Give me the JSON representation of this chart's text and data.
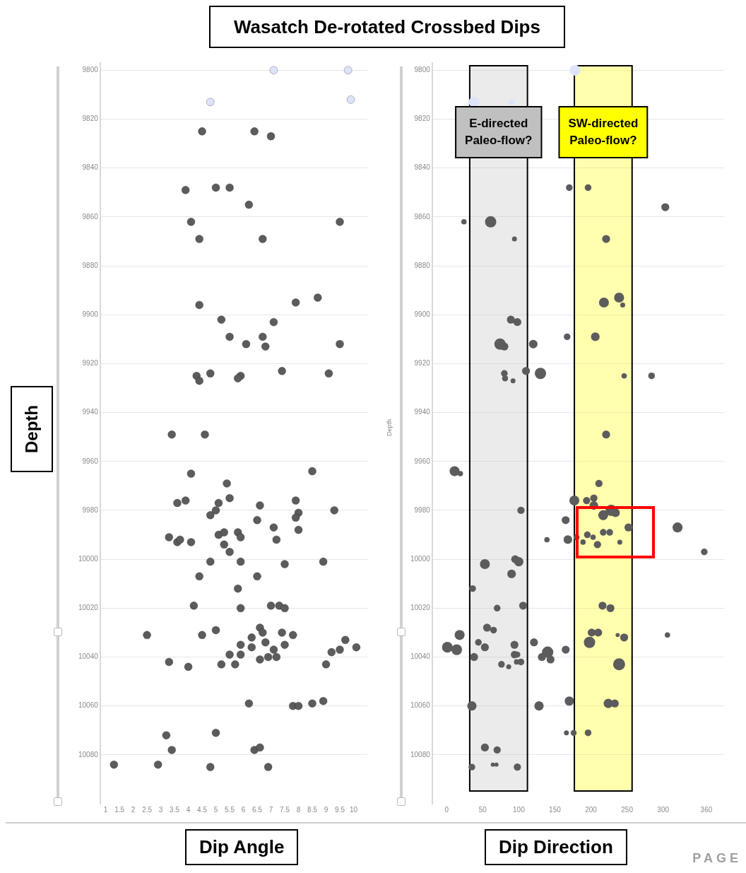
{
  "chart_data": [
    {
      "type": "scatter",
      "title": "Wasatch De-rotated Crossbed Dips",
      "xlabel": "Dip Angle",
      "ylabel": "Depth",
      "marker": "circle",
      "grid": "y",
      "xlim": [
        0.8,
        10.5
      ],
      "ylim": [
        10100,
        9797
      ],
      "xticks": [
        1,
        1.5,
        2,
        2.5,
        3,
        3.5,
        4,
        4.5,
        5,
        5.5,
        6,
        6.5,
        7,
        7.5,
        8,
        8.5,
        9,
        9.5,
        10
      ],
      "yticks": [
        9800,
        9820,
        9840,
        9860,
        9880,
        9900,
        9920,
        9940,
        9960,
        9980,
        10000,
        10020,
        10040,
        10060,
        10080
      ],
      "series": [
        {
          "color": "#5c5c5c",
          "x": [
            4.5,
            6.4,
            7.0,
            3.9,
            5.0,
            5.5,
            6.2,
            4.1,
            9.5,
            4.4,
            6.7,
            4.4,
            7.9,
            8.7,
            5.2,
            7.1,
            5.5,
            6.7,
            6.1,
            6.8,
            9.5,
            4.3,
            4.4,
            4.8,
            5.9,
            5.8,
            7.4,
            9.1,
            3.4,
            4.6,
            4.1,
            8.5,
            5.4,
            3.6,
            3.9,
            5.1,
            5.5,
            6.6,
            7.9,
            5.0,
            4.8,
            6.5,
            8.0,
            7.9,
            9.3,
            7.1,
            8.0,
            3.3,
            3.6,
            3.7,
            4.1,
            5.1,
            5.3,
            5.8,
            5.9,
            7.2,
            5.3,
            5.5,
            4.8,
            5.9,
            7.5,
            8.9,
            4.4,
            6.5,
            5.8,
            4.2,
            5.9,
            7.0,
            7.3,
            7.5,
            2.5,
            4.5,
            5.0,
            6.3,
            6.6,
            6.7,
            7.4,
            7.8,
            5.9,
            6.3,
            6.8,
            7.5,
            9.7,
            9.2,
            9.5,
            10.1,
            5.5,
            5.9,
            6.6,
            6.9,
            7.1,
            7.2,
            3.3,
            4.0,
            5.2,
            5.7,
            9.0,
            6.2,
            7.8,
            8.0,
            8.5,
            8.9,
            3.2,
            5.0,
            3.4,
            6.4,
            6.6,
            1.3,
            2.9,
            4.8,
            6.9
          ],
          "values": [
            9825,
            9825,
            9827,
            9849,
            9848,
            9848,
            9855,
            9862,
            9862,
            9869,
            9869,
            9896,
            9895,
            9893,
            9902,
            9903,
            9909,
            9909,
            9912,
            9913,
            9912,
            9925,
            9927,
            9924,
            9925,
            9926,
            9923,
            9924,
            9949,
            9949,
            9965,
            9964,
            9969,
            9977,
            9976,
            9977,
            9975,
            9978,
            9976,
            9980,
            9982,
            9984,
            9981,
            9983,
            9980,
            9987,
            9988,
            9991,
            9993,
            9992,
            9993,
            9990,
            9989,
            9989,
            9991,
            9992,
            9994,
            9997,
            10001,
            10001,
            10002,
            10001,
            10007,
            10007,
            10012,
            10019,
            10020,
            10019,
            10019,
            10020,
            10031,
            10031,
            10029,
            10032,
            10028,
            10030,
            10030,
            10031,
            10035,
            10036,
            10034,
            10035,
            10033,
            10038,
            10037,
            10036,
            10039,
            10039,
            10041,
            10040,
            10037,
            10040,
            10042,
            10044,
            10043,
            10043,
            10043,
            10059,
            10060,
            10060,
            10059,
            10058,
            10072,
            10071,
            10078,
            10078,
            10077,
            10084,
            10084,
            10085,
            10085
          ]
        },
        {
          "color": "#dde3f8",
          "x": [
            7.1,
            9.8,
            4.8,
            9.9
          ],
          "values": [
            9800,
            9800,
            9813,
            9812
          ]
        }
      ]
    },
    {
      "type": "bubble",
      "xlabel": "Dip Direction",
      "ylabel": "Depth",
      "grid": "y",
      "annotations": [
        "PAGE"
      ],
      "xlim": [
        -20,
        385
      ],
      "ylim": [
        10100,
        9797
      ],
      "xticks": [
        0,
        50,
        100,
        150,
        200,
        250,
        300,
        360
      ],
      "yticks": [
        9800,
        9820,
        9840,
        9860,
        9880,
        9900,
        9920,
        9940,
        9960,
        9980,
        10000,
        10020,
        10040,
        10060,
        10080
      ],
      "bands": [
        {
          "axis": "x",
          "from": 32,
          "to": 112,
          "label": "E-directed Paleo-flow?",
          "color": "#c0c0c0"
        },
        {
          "axis": "x",
          "from": 177,
          "to": 257,
          "label": "SW-directed Paleo-flow?",
          "color": "#ffff00"
        }
      ],
      "series": [
        {
          "color": "#5c5c5c",
          "x": [
            170,
            196,
            303,
            24,
            61,
            94,
            221,
            218,
            239,
            244,
            89,
            98,
            167,
            206,
            74,
            80,
            120,
            80,
            81,
            92,
            110,
            130,
            246,
            284,
            221,
            11,
            19,
            211,
            177,
            194,
            204,
            204,
            228,
            234,
            103,
            217,
            165,
            252,
            320,
            139,
            168,
            180,
            189,
            195,
            203,
            209,
            217,
            226,
            240,
            357,
            53,
            95,
            100,
            90,
            36,
            70,
            106,
            216,
            227,
            18,
            56,
            65,
            201,
            210,
            237,
            246,
            306,
            198,
            1,
            14,
            44,
            53,
            94,
            121,
            140,
            132,
            144,
            165,
            38,
            94,
            98,
            76,
            86,
            97,
            103,
            239,
            35,
            128,
            170,
            224,
            233,
            166,
            176,
            196,
            53,
            70,
            35,
            64,
            69,
            98
          ],
          "values": [
            9848,
            9848,
            9856,
            9862,
            9862,
            9869,
            9869,
            9895,
            9893,
            9896,
            9902,
            9903,
            9909,
            9909,
            9912,
            9913,
            9912,
            9924,
            9926,
            9927,
            9923,
            9924,
            9925,
            9925,
            9949,
            9964,
            9965,
            9969,
            9976,
            9976,
            9975,
            9978,
            9980,
            9981,
            9980,
            9982,
            9984,
            9987,
            9987,
            9992,
            9992,
            9991,
            9993,
            9990,
            9991,
            9994,
            9989,
            9989,
            9993,
            9997,
            10002,
            10000,
            10001,
            10006,
            10012,
            10020,
            10019,
            10019,
            10020,
            10031,
            10028,
            10029,
            10030,
            10030,
            10031,
            10032,
            10031,
            10034,
            10036,
            10037,
            10034,
            10036,
            10035,
            10034,
            10038,
            10040,
            10041,
            10037,
            10040,
            10039,
            10039,
            10043,
            10044,
            10042,
            10042,
            10043,
            10060,
            10060,
            10058,
            10059,
            10059,
            10071,
            10071,
            10071,
            10077,
            10078,
            10085,
            10084,
            10084,
            10085
          ],
          "sizes": [
            0.31,
            0.31,
            0.44,
            0.2,
            0.89,
            0.17,
            0.44,
            0.69,
            0.69,
            0.17,
            0.44,
            0.44,
            0.31,
            0.52,
            0.89,
            0.44,
            0.52,
            0.31,
            0.25,
            0.17,
            0.44,
            0.89,
            0.2,
            0.31,
            0.44,
            0.69,
            0.2,
            0.37,
            0.69,
            0.37,
            0.37,
            0.52,
            0.89,
            0.52,
            0.37,
            0.69,
            0.44,
            0.44,
            0.69,
            0.2,
            0.52,
            0.25,
            0.2,
            0.31,
            0.2,
            0.37,
            0.31,
            0.31,
            0.17,
            0.31,
            0.69,
            0.44,
            0.6,
            0.52,
            0.31,
            0.31,
            0.44,
            0.44,
            0.44,
            0.69,
            0.44,
            0.31,
            0.44,
            0.44,
            0.12,
            0.44,
            0.2,
            0.89,
            0.79,
            0.79,
            0.31,
            0.44,
            0.44,
            0.44,
            0.89,
            0.44,
            0.44,
            0.44,
            0.44,
            0.37,
            0.25,
            0.31,
            0.17,
            0.2,
            0.31,
            1,
            0.6,
            0.6,
            0.6,
            0.6,
            0.44,
            0.17,
            0.25,
            0.31,
            0.44,
            0.37,
            0.31,
            0.12,
            0.12,
            0.37
          ]
        },
        {
          "color": "#dde3f8",
          "x": [
            178,
            38,
            90
          ],
          "values": [
            9800,
            9813,
            9813
          ],
          "sizes": [
            0.79,
            0.79,
            0.25
          ]
        }
      ]
    }
  ]
}
